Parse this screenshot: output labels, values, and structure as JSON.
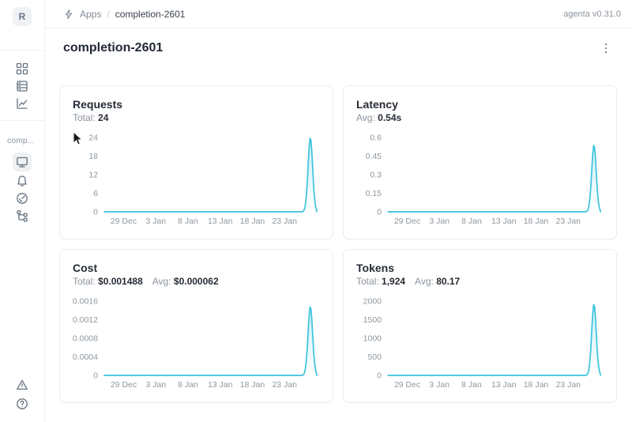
{
  "theme": {
    "line_color": "#3cc3dd",
    "area_fill_top_opacity": 0.28,
    "accent_bg_active": "#eef1f4"
  },
  "topbar": {
    "logo_icon": "agenta-logo-icon",
    "breadcrumb": {
      "items": [
        "Apps",
        "completion-2601"
      ],
      "separator": "/"
    },
    "version": "agenta v0.31.0"
  },
  "page": {
    "title": "completion-2601"
  },
  "sidebar": {
    "workspace_initial": "R",
    "section_label": "comp...",
    "icons_top": [
      "grid-icon",
      "server-icon",
      "line-chart-icon"
    ],
    "icons_app": [
      "monitor-icon",
      "bell-icon",
      "gauge-icon",
      "tree-icon"
    ],
    "active_icon": "monitor-icon",
    "icons_bottom": [
      "warning-icon",
      "help-icon"
    ]
  },
  "chart_data": [
    {
      "id": "requests",
      "type": "area",
      "title": "Requests",
      "stats": [
        {
          "label": "Total:",
          "value": "24"
        }
      ],
      "y_max": 24,
      "y_tick_labels": [
        "24",
        "18",
        "12",
        "6",
        "0"
      ],
      "ylim": [
        0,
        24
      ],
      "x_ticks": [
        {
          "label": "29 Dec",
          "day": 0
        },
        {
          "label": "3 Jan",
          "day": 5
        },
        {
          "label": "8 Jan",
          "day": 10
        },
        {
          "label": "13 Jan",
          "day": 15
        },
        {
          "label": "18 Jan",
          "day": 20
        },
        {
          "label": "23 Jan",
          "day": 25
        }
      ],
      "x_domain": [
        "26 Dec",
        "28 Jan"
      ],
      "domain_days": [
        -3,
        30
      ],
      "points": [
        {
          "date": "26 Dec",
          "day": -3,
          "value": 0
        },
        {
          "date": "26 Jan",
          "day": 28,
          "value": 0
        },
        {
          "date": "27 Jan",
          "day": 29,
          "value": 24
        },
        {
          "date": "28 Jan",
          "day": 30,
          "value": 0
        }
      ],
      "series_note": "flat at 0 from 26 Dec to 26 Jan, single spike peaking at 24 on 27 Jan",
      "grid": false,
      "legend": false
    },
    {
      "id": "latency",
      "type": "area",
      "title": "Latency",
      "stats": [
        {
          "label": "Avg:",
          "value": "0.54s"
        }
      ],
      "y_max": 0.6,
      "y_tick_labels": [
        "0.6",
        "0.45",
        "0.3",
        "0.15",
        "0"
      ],
      "ylim": [
        0,
        0.6
      ],
      "x_ticks": [
        {
          "label": "29 Dec",
          "day": 0
        },
        {
          "label": "3 Jan",
          "day": 5
        },
        {
          "label": "8 Jan",
          "day": 10
        },
        {
          "label": "13 Jan",
          "day": 15
        },
        {
          "label": "18 Jan",
          "day": 20
        },
        {
          "label": "23 Jan",
          "day": 25
        }
      ],
      "x_domain": [
        "26 Dec",
        "28 Jan"
      ],
      "domain_days": [
        -3,
        30
      ],
      "points": [
        {
          "date": "26 Dec",
          "day": -3,
          "value": 0
        },
        {
          "date": "26 Jan",
          "day": 28,
          "value": 0
        },
        {
          "date": "27 Jan",
          "day": 29,
          "value": 0.54
        },
        {
          "date": "28 Jan",
          "day": 30,
          "value": 0
        }
      ],
      "series_note": "flat at 0 from 26 Dec to 26 Jan, single spike peaking at 0.54s on 27 Jan",
      "grid": false,
      "legend": false
    },
    {
      "id": "cost",
      "type": "area",
      "title": "Cost",
      "stats": [
        {
          "label": "Total:",
          "value": "$0.001488"
        },
        {
          "label": "Avg:",
          "value": "$0.000062"
        }
      ],
      "y_max": 0.0016,
      "y_tick_labels": [
        "0.0016",
        "0.0012",
        "0.0008",
        "0.0004",
        "0"
      ],
      "ylim": [
        0,
        0.0016
      ],
      "x_ticks": [
        {
          "label": "29 Dec",
          "day": 0
        },
        {
          "label": "3 Jan",
          "day": 5
        },
        {
          "label": "8 Jan",
          "day": 10
        },
        {
          "label": "13 Jan",
          "day": 15
        },
        {
          "label": "18 Jan",
          "day": 20
        },
        {
          "label": "23 Jan",
          "day": 25
        }
      ],
      "x_domain": [
        "26 Dec",
        "28 Jan"
      ],
      "domain_days": [
        -3,
        30
      ],
      "points": [
        {
          "date": "26 Dec",
          "day": -3,
          "value": 0
        },
        {
          "date": "26 Jan",
          "day": 28,
          "value": 0
        },
        {
          "date": "27 Jan",
          "day": 29,
          "value": 0.001488
        },
        {
          "date": "28 Jan",
          "day": 30,
          "value": 0
        }
      ],
      "series_note": "flat at 0 from 26 Dec to 26 Jan, single spike peaking at $0.001488 on 27 Jan",
      "grid": false,
      "legend": false
    },
    {
      "id": "tokens",
      "type": "area",
      "title": "Tokens",
      "stats": [
        {
          "label": "Total:",
          "value": "1,924"
        },
        {
          "label": "Avg:",
          "value": "80.17"
        }
      ],
      "y_max": 2000,
      "y_tick_labels": [
        "2000",
        "1500",
        "1000",
        "500",
        "0"
      ],
      "ylim": [
        0,
        2000
      ],
      "x_ticks": [
        {
          "label": "29 Dec",
          "day": 0
        },
        {
          "label": "3 Jan",
          "day": 5
        },
        {
          "label": "8 Jan",
          "day": 10
        },
        {
          "label": "13 Jan",
          "day": 15
        },
        {
          "label": "18 Jan",
          "day": 20
        },
        {
          "label": "23 Jan",
          "day": 25
        }
      ],
      "x_domain": [
        "26 Dec",
        "28 Jan"
      ],
      "domain_days": [
        -3,
        30
      ],
      "points": [
        {
          "date": "26 Dec",
          "day": -3,
          "value": 0
        },
        {
          "date": "26 Jan",
          "day": 28,
          "value": 0
        },
        {
          "date": "27 Jan",
          "day": 29,
          "value": 1924
        },
        {
          "date": "28 Jan",
          "day": 30,
          "value": 0
        }
      ],
      "series_note": "flat at 0 from 26 Dec to 26 Jan, single spike peaking at 1,924 on 27 Jan",
      "grid": false,
      "legend": false
    }
  ]
}
